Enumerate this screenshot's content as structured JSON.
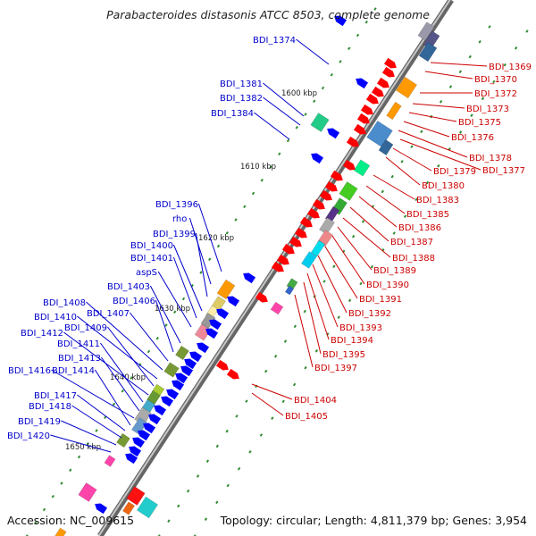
{
  "title": "Parabacteroides distasonis ATCC 8503, complete genome",
  "footer": {
    "accession": "Accession: NC_009615",
    "topology": "Topology: circular; Length: 4,811,379 bp; Genes: 3,954"
  },
  "colors": {
    "backbone": "#8a8a8a",
    "minus_strand_label": "#0000cc",
    "plus_strand_label": "#cc0000",
    "tick_dot": "#2e8b2e",
    "minus_arrow": "#0000ff",
    "plus_arrow": "#ff0000"
  },
  "scale_labels": [
    "1600 kbp",
    "1610 kbp",
    "1620 kbp",
    "1630 kbp",
    "1640 kbp",
    "1650 kbp"
  ],
  "left_labels": [
    "BDI_1374",
    "BDI_1381",
    "BDI_1382",
    "BDI_1384",
    "BDI_1396",
    "rho",
    "BDI_1399",
    "BDI_1400",
    "BDI_1401",
    "aspS",
    "BDI_1403",
    "BDI_1406",
    "BDI_1407",
    "BDI_1408",
    "BDI_1410",
    "BDI_1409",
    "BDI_1412",
    "BDI_1411",
    "BDI_1413",
    "BDI_1416",
    "BDI_1414",
    "BDI_1417",
    "BDI_1418",
    "BDI_1419",
    "BDI_1420"
  ],
  "right_labels": [
    "BDI_1369",
    "BDI_1370",
    "BDI_1372",
    "BDI_1373",
    "BDI_1375",
    "BDI_1376",
    "BDI_1378",
    "BDI_1377",
    "BDI_1379",
    "BDI_1380",
    "BDI_1383",
    "BDI_1385",
    "BDI_1386",
    "BDI_1387",
    "BDI_1388",
    "BDI_1389",
    "BDI_1390",
    "BDI_1391",
    "BDI_1392",
    "BDI_1393",
    "BDI_1394",
    "BDI_1395",
    "BDI_1397",
    "BDI_1404",
    "BDI_1405"
  ]
}
